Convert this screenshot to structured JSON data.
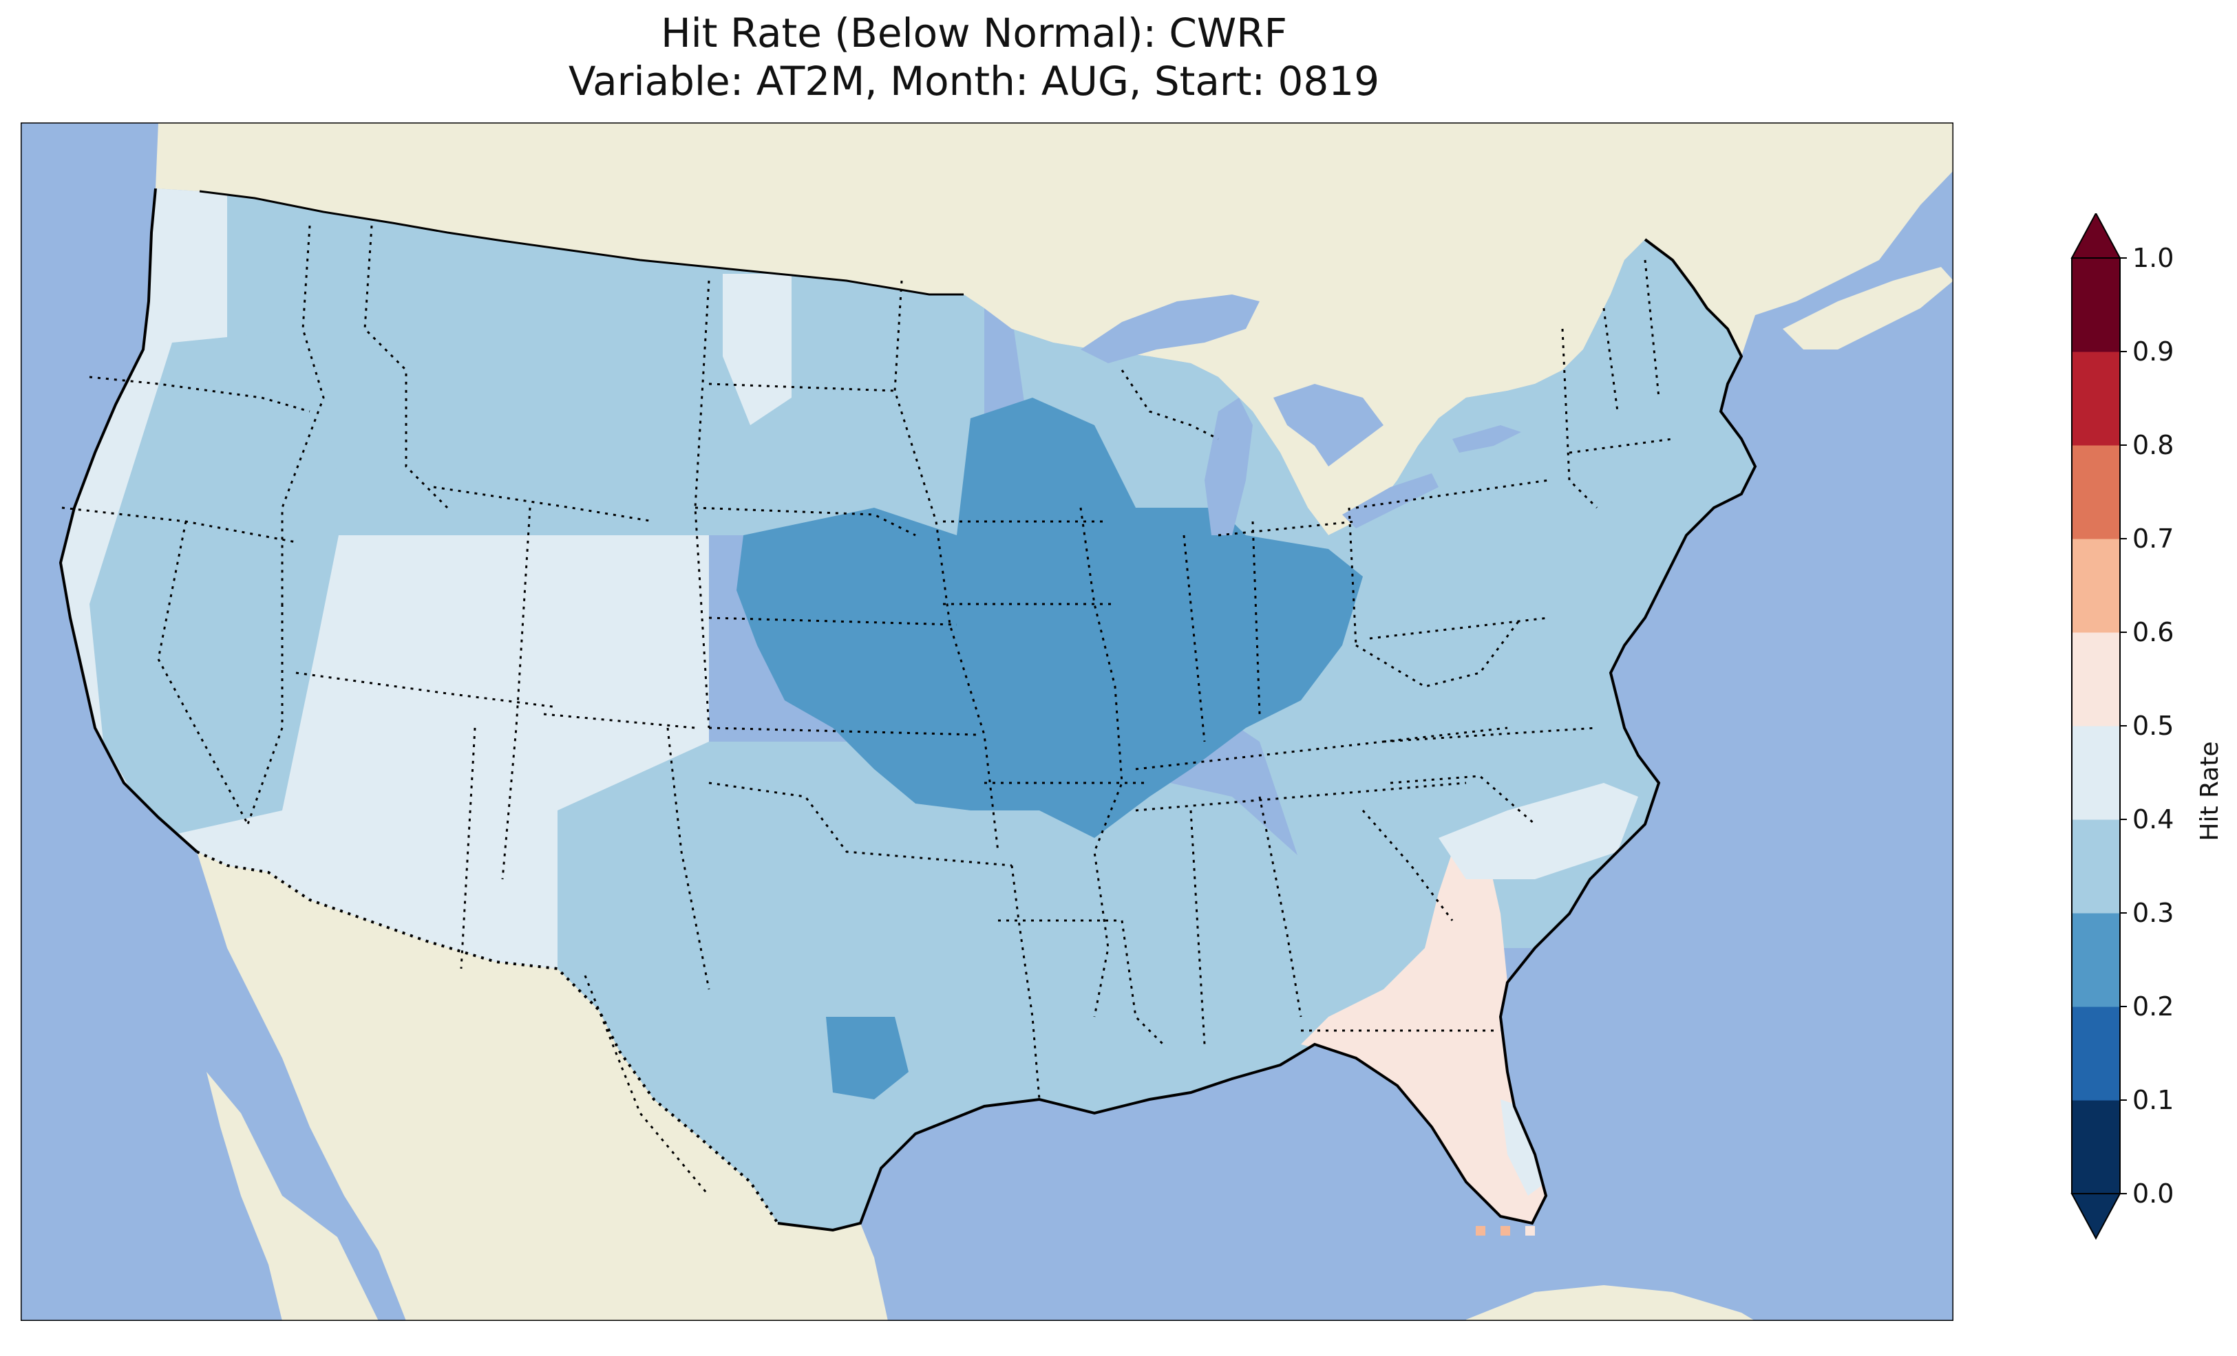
{
  "title": {
    "line1": "Hit Rate (Below Normal): CWRF",
    "line2": "Variable: AT2M, Month: AUG, Start: 0819"
  },
  "colorbar": {
    "label": "Hit Rate",
    "ticks": [
      "0.0",
      "0.1",
      "0.2",
      "0.3",
      "0.4",
      "0.5",
      "0.6",
      "0.7",
      "0.8",
      "0.9",
      "1.0"
    ],
    "colors": [
      "#053061",
      "#2166ac",
      "#4393c3",
      "#92c5de",
      "#d1e5f0",
      "#f7f7f7",
      "#fddbc7",
      "#f4a582",
      "#d6604d",
      "#b2182b",
      "#67001f"
    ],
    "bins": [
      {
        "range": "0.0-0.1",
        "color": "#08305f"
      },
      {
        "range": "0.1-0.2",
        "color": "#2266ac"
      },
      {
        "range": "0.2-0.3",
        "color": "#5299c7"
      },
      {
        "range": "0.3-0.4",
        "color": "#a6cde2"
      },
      {
        "range": "0.4-0.5",
        "color": "#e0ecf3"
      },
      {
        "range": "0.5-0.6",
        "color": "#f9e6de"
      },
      {
        "range": "0.6-0.7",
        "color": "#f6b897"
      },
      {
        "range": "0.7-0.8",
        "color": "#df7659"
      },
      {
        "range": "0.8-0.9",
        "color": "#b7212f"
      },
      {
        "range": "0.9-1.0",
        "color": "#6b0120"
      }
    ],
    "extend": "both"
  },
  "map": {
    "ocean_color": "#97b6e1",
    "land_color": "#efedd9",
    "regions": [
      {
        "name": "northwest",
        "hit_rate_bin": "0.4-0.5"
      },
      {
        "name": "great basin",
        "hit_rate_bin": "0.4-0.5"
      },
      {
        "name": "southwest",
        "hit_rate_bin": "0.4-0.5"
      },
      {
        "name": "northern plains",
        "hit_rate_bin": "0.3-0.4"
      },
      {
        "name": "central plains and midwest",
        "hit_rate_bin": "0.2-0.3"
      },
      {
        "name": "texas and south",
        "hit_rate_bin": "0.3-0.4"
      },
      {
        "name": "northeast",
        "hit_rate_bin": "0.3-0.4"
      },
      {
        "name": "florida and georgia coast",
        "hit_rate_bin": "0.5-0.6"
      }
    ]
  }
}
